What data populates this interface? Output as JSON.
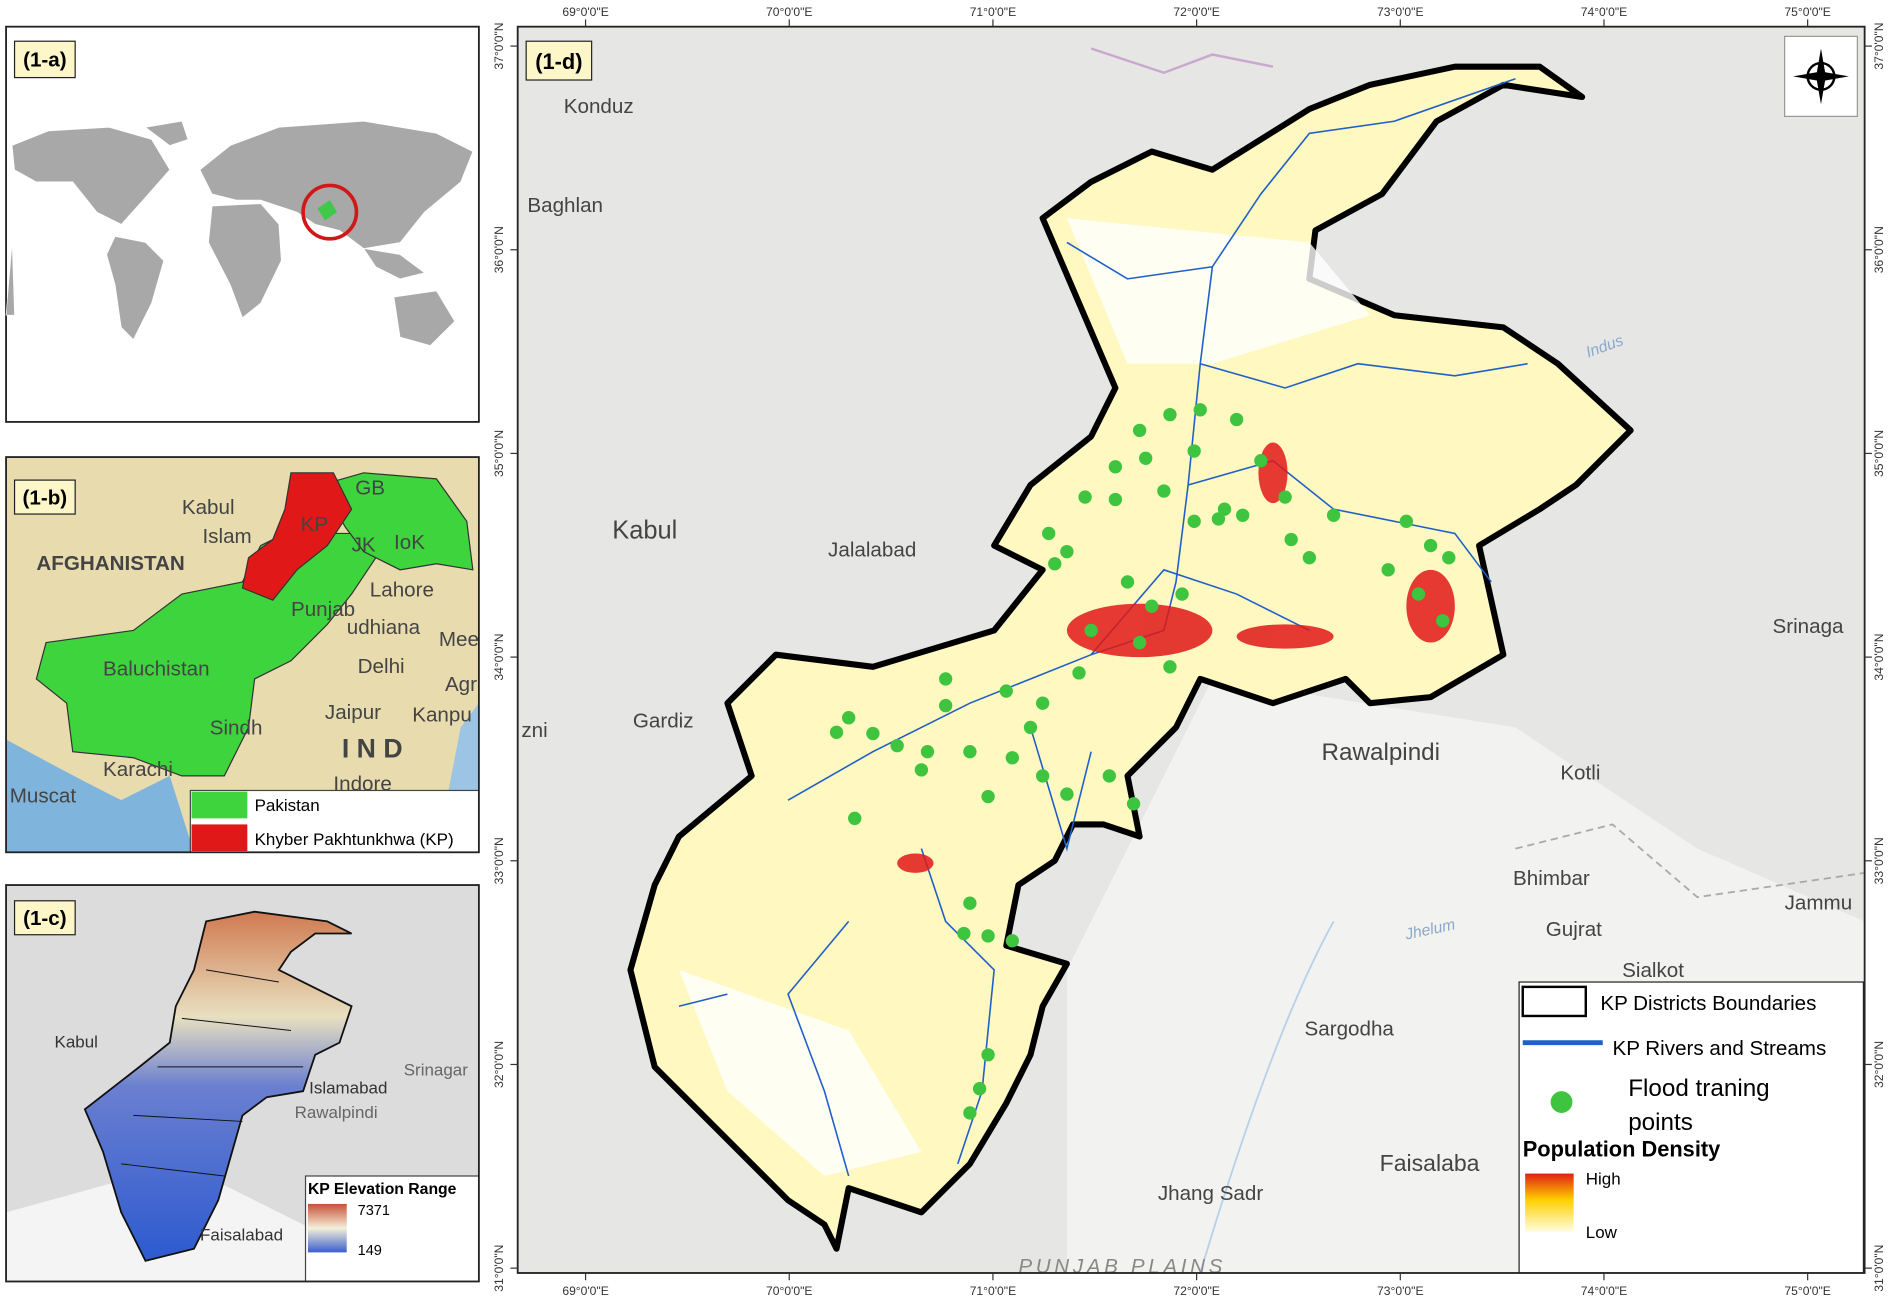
{
  "panels": {
    "a": {
      "label": "(1-a)"
    },
    "b": {
      "label": "(1-b)",
      "places": [
        "Kabul",
        "Islam",
        "AFGHANISTAN",
        "GB",
        "KP",
        "JK",
        "IoK",
        "Lahore",
        "Punjab",
        "udhiana",
        "Mee",
        "Baluchistan",
        "Delhi",
        "Agr",
        "Jaipur",
        "Kanpu",
        "Sindh",
        "I N D",
        "Karachi",
        "Indore",
        "Muscat"
      ],
      "legend": [
        "Pakistan",
        "Khyber Pakhtunkhwa (KP)"
      ]
    },
    "c": {
      "label": "(1-c)",
      "places": [
        "Kabul",
        "Islamabad",
        "Rawalpindi",
        "Srinagar",
        "Faisalabad"
      ],
      "legend_title": "KP Elevation Range",
      "legend_high": "7371",
      "legend_low": "149"
    },
    "d": {
      "label": "(1-d)",
      "places": [
        "Konduz",
        "Baghlan",
        "Kabul",
        "Jalalabad",
        "Gardiz",
        "zni",
        "Rawalpindi",
        "Srinaga",
        "Kotli",
        "Bhimbar",
        "Jammu",
        "Gujrat",
        "Sialkot",
        "Sargodha",
        "Faisalaba",
        "Jhang Sadr",
        "PUNJAB PLAINS",
        "Jhelum",
        "Indus"
      ],
      "lon_ticks": [
        "69°0'0\"E",
        "70°0'0\"E",
        "71°0'0\"E",
        "72°0'0\"E",
        "73°0'0\"E",
        "74°0'0\"E",
        "75°0'0\"E"
      ],
      "lat_ticks": [
        "37°0'0\"N",
        "36°0'0\"N",
        "35°0'0\"N",
        "34°0'0\"N",
        "33°0'0\"N",
        "32°0'0\"N",
        "31°0'0\"N"
      ],
      "legend": [
        "KP Districts Boundaries",
        "KP Rivers and Streams",
        "Flood traning",
        "points"
      ],
      "density_title": "Population Density",
      "density_high": "High",
      "density_low": "Low"
    }
  }
}
